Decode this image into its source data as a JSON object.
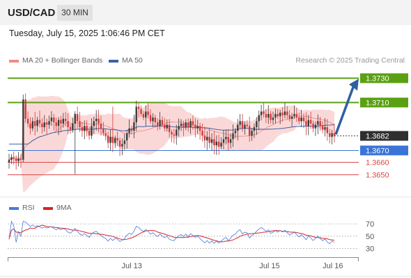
{
  "header": {
    "symbol": "USD/CAD",
    "timeframe": "30 MIN",
    "datetime": "Tuesday, July 15, 2025 1:06:46 PM CET"
  },
  "colors": {
    "up_candle": "#3a3a3a",
    "down_candle": "#d23a3a",
    "bollinger_fill": "#fbd4d4",
    "ma20": "#f08a8a",
    "ma50": "#3a62a6",
    "resistance": "#5aa012",
    "current": "#2f2f2f",
    "pivot": "#3a74d9",
    "support": "#d94848",
    "rsi": "#4a78d8",
    "rsi_ma": "#d42424",
    "arrow": "#2f5f9e"
  },
  "chart_data": [
    {
      "type": "candlestick",
      "legend": [
        {
          "name": "MA 20 + Bollinger Bands",
          "color": "#f08a8a"
        },
        {
          "name": "MA 50",
          "color": "#3a62a6"
        }
      ],
      "credit": "Research © 2025 Trading Central",
      "ylim": [
        1.364,
        1.3738
      ],
      "x_labels": [
        "Jul 13",
        "Jul 15",
        "Jul 16"
      ],
      "last_price": "1.3682",
      "levels": [
        {
          "label": "1.3730",
          "value": 1.373,
          "kind": "resistance"
        },
        {
          "label": "1.3710",
          "value": 1.371,
          "kind": "resistance"
        },
        {
          "label": "1.3682",
          "value": 1.3682,
          "kind": "current"
        },
        {
          "label": "1.3670",
          "value": 1.367,
          "kind": "pivot"
        },
        {
          "label": "1.3660",
          "value": 1.366,
          "kind": "support"
        },
        {
          "label": "1.3650",
          "value": 1.365,
          "kind": "support"
        }
      ],
      "close": [
        1.3662,
        1.3664,
        1.3663,
        1.3661,
        1.3663,
        1.3662,
        1.3712,
        1.3696,
        1.3692,
        1.3688,
        1.3694,
        1.369,
        1.3695,
        1.3692,
        1.3689,
        1.3693,
        1.3691,
        1.3694,
        1.3697,
        1.3693,
        1.369,
        1.3695,
        1.3692,
        1.3696,
        1.3694,
        1.3689,
        1.3687,
        1.3692,
        1.37,
        1.3694,
        1.3689,
        1.3686,
        1.369,
        1.3686,
        1.3682,
        1.369,
        1.3694,
        1.3696,
        1.3692,
        1.3688,
        1.3684,
        1.3682,
        1.3676,
        1.3681,
        1.3676,
        1.368,
        1.3678,
        1.3673,
        1.3675,
        1.3678,
        1.3684,
        1.3688,
        1.3686,
        1.3693,
        1.3706,
        1.3704,
        1.37,
        1.3697,
        1.3702,
        1.3699,
        1.3694,
        1.3697,
        1.3693,
        1.369,
        1.3695,
        1.3691,
        1.3688,
        1.3691,
        1.3685,
        1.3683,
        1.3682,
        1.3687,
        1.369,
        1.3692,
        1.3689,
        1.3693,
        1.3689,
        1.3694,
        1.3691,
        1.3688,
        1.369,
        1.3686,
        1.3682,
        1.3678,
        1.3681,
        1.3676,
        1.3679,
        1.3674,
        1.3677,
        1.3673,
        1.3676,
        1.3679,
        1.3681,
        1.3676,
        1.3679,
        1.3684,
        1.3686,
        1.3691,
        1.3694,
        1.3688,
        1.3691,
        1.369,
        1.3682,
        1.3686,
        1.3689,
        1.3694,
        1.3699,
        1.3702,
        1.37,
        1.3697,
        1.37,
        1.3695,
        1.3697,
        1.37,
        1.3698,
        1.3701,
        1.3699,
        1.3702,
        1.3699,
        1.3696,
        1.3698,
        1.37,
        1.3697,
        1.3694,
        1.3697,
        1.3694,
        1.369,
        1.3695,
        1.3692,
        1.3688,
        1.3691,
        1.3694,
        1.369,
        1.3687,
        1.3689,
        1.3684,
        1.3681,
        1.3684,
        1.3682
      ]
    },
    {
      "type": "line",
      "legend": [
        {
          "name": "RSI",
          "color": "#4a78d8"
        },
        {
          "name": "9MA",
          "color": "#d42424"
        }
      ],
      "ylim": [
        25,
        78
      ],
      "y_ticks": [
        "70",
        "50",
        "30"
      ],
      "gridlines": [
        70,
        50,
        30
      ]
    }
  ]
}
